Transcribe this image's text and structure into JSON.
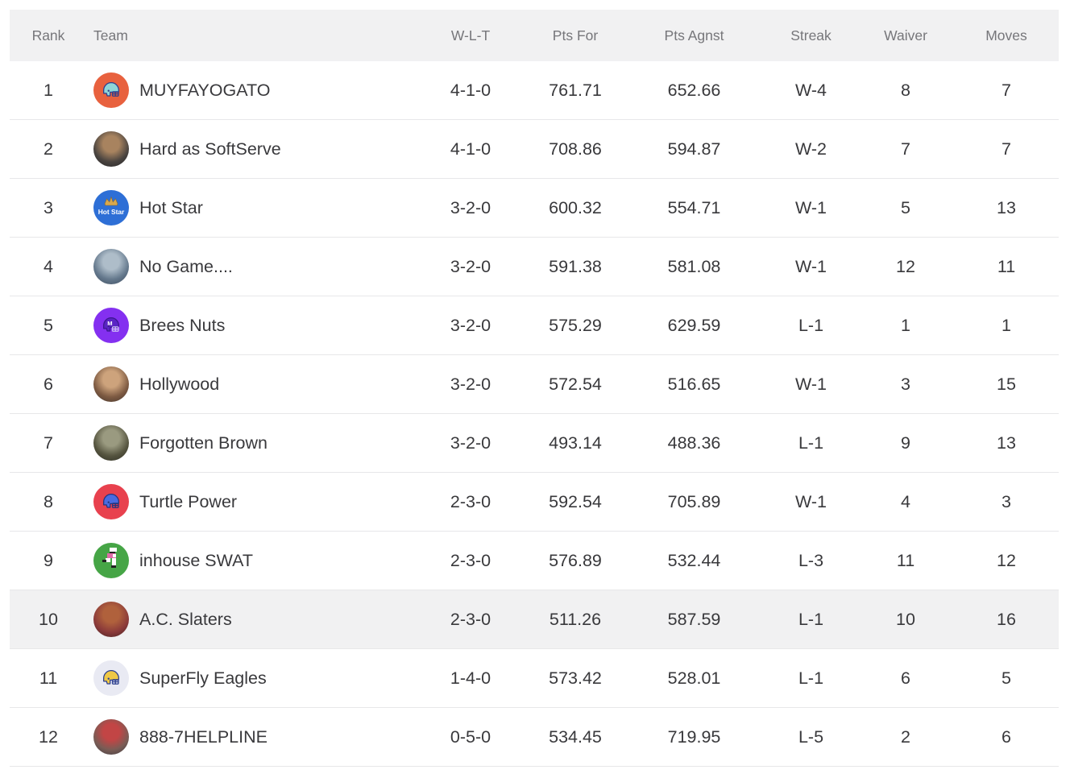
{
  "table": {
    "columns": [
      {
        "key": "rank",
        "label": "Rank"
      },
      {
        "key": "team",
        "label": "Team"
      },
      {
        "key": "wlt",
        "label": "W-L-T"
      },
      {
        "key": "pts_for",
        "label": "Pts For"
      },
      {
        "key": "pts_agnst",
        "label": "Pts Agnst"
      },
      {
        "key": "streak",
        "label": "Streak"
      },
      {
        "key": "waiver",
        "label": "Waiver"
      },
      {
        "key": "moves",
        "label": "Moves"
      }
    ],
    "highlighted_rank": "10",
    "rows": [
      {
        "rank": "1",
        "team": "MUYFAYOGATO",
        "wlt": "4-1-0",
        "pts_for": "761.71",
        "pts_agnst": "652.66",
        "streak": "W-4",
        "waiver": "8",
        "moves": "7",
        "avatar": {
          "kind": "helmet",
          "icon": "football-helmet-icon",
          "bg": "#E8613E",
          "shell": "#8ED5D8",
          "stroke": "#2C3F8F"
        }
      },
      {
        "rank": "2",
        "team": "Hard as SoftServe",
        "wlt": "4-1-0",
        "pts_for": "708.86",
        "pts_agnst": "594.87",
        "streak": "W-2",
        "waiver": "7",
        "moves": "7",
        "avatar": {
          "kind": "photo",
          "icon": "photo-avatar",
          "colors": [
            "#a8835f",
            "#4a4440",
            "#232325"
          ]
        }
      },
      {
        "rank": "3",
        "team": "Hot Star",
        "wlt": "3-2-0",
        "pts_for": "600.32",
        "pts_agnst": "554.71",
        "streak": "W-1",
        "waiver": "5",
        "moves": "13",
        "avatar": {
          "kind": "badge",
          "icon": "hot-star-badge-icon",
          "bg": "#2E6FD6",
          "crown": "#D9A84E",
          "text": "Hot Star",
          "text_color": "#ffffff"
        }
      },
      {
        "rank": "4",
        "team": "No Game....",
        "wlt": "3-2-0",
        "pts_for": "591.38",
        "pts_agnst": "581.08",
        "streak": "W-1",
        "waiver": "12",
        "moves": "11",
        "avatar": {
          "kind": "photo",
          "icon": "photo-avatar",
          "colors": [
            "#aebdc9",
            "#64788c",
            "#3c4a5c"
          ]
        }
      },
      {
        "rank": "5",
        "team": "Brees Nuts",
        "wlt": "3-2-0",
        "pts_for": "575.29",
        "pts_agnst": "629.59",
        "streak": "L-1",
        "waiver": "1",
        "moves": "1",
        "avatar": {
          "kind": "helmet",
          "icon": "football-helmet-icon",
          "bg": "#8430F0",
          "shell": "#5A24C4",
          "stroke": "#3B1690",
          "mask": "#CabdF3",
          "letter": "M"
        }
      },
      {
        "rank": "6",
        "team": "Hollywood",
        "wlt": "3-2-0",
        "pts_for": "572.54",
        "pts_agnst": "516.65",
        "streak": "W-1",
        "waiver": "3",
        "moves": "15",
        "avatar": {
          "kind": "photo",
          "icon": "photo-avatar",
          "colors": [
            "#cda37c",
            "#7d5a42",
            "#40332c"
          ]
        }
      },
      {
        "rank": "7",
        "team": "Forgotten Brown",
        "wlt": "3-2-0",
        "pts_for": "493.14",
        "pts_agnst": "488.36",
        "streak": "L-1",
        "waiver": "9",
        "moves": "13",
        "avatar": {
          "kind": "photo",
          "icon": "photo-avatar",
          "colors": [
            "#9a9a80",
            "#55543f",
            "#2c2c23"
          ]
        }
      },
      {
        "rank": "8",
        "team": "Turtle Power",
        "wlt": "2-3-0",
        "pts_for": "592.54",
        "pts_agnst": "705.89",
        "streak": "W-1",
        "waiver": "4",
        "moves": "3",
        "avatar": {
          "kind": "helmet",
          "icon": "football-helmet-icon",
          "bg": "#E8414E",
          "shell": "#4A6BE0",
          "stroke": "#23357F"
        }
      },
      {
        "rank": "9",
        "team": "inhouse SWAT",
        "wlt": "2-3-0",
        "pts_for": "576.89",
        "pts_agnst": "532.44",
        "streak": "L-3",
        "waiver": "11",
        "moves": "12",
        "avatar": {
          "kind": "pixel",
          "icon": "pixel-player-icon",
          "bg": "#46A546",
          "c1": "#ffffff",
          "c2": "#E06AA8",
          "c3": "#222222"
        }
      },
      {
        "rank": "10",
        "team": "A.C. Slaters",
        "wlt": "2-3-0",
        "pts_for": "511.26",
        "pts_agnst": "587.59",
        "streak": "L-1",
        "waiver": "10",
        "moves": "16",
        "avatar": {
          "kind": "photo",
          "icon": "photo-avatar",
          "colors": [
            "#b0613c",
            "#8b3a3a",
            "#402020"
          ]
        }
      },
      {
        "rank": "11",
        "team": "SuperFly Eagles",
        "wlt": "1-4-0",
        "pts_for": "573.42",
        "pts_agnst": "528.01",
        "streak": "L-1",
        "waiver": "6",
        "moves": "5",
        "avatar": {
          "kind": "helmet",
          "icon": "football-helmet-icon",
          "bg": "#E9EAF3",
          "shell": "#EFC846",
          "stroke": "#2C3F8F"
        }
      },
      {
        "rank": "12",
        "team": "888-7HELPLINE",
        "wlt": "0-5-0",
        "pts_for": "534.45",
        "pts_agnst": "719.95",
        "streak": "L-5",
        "waiver": "2",
        "moves": "6",
        "avatar": {
          "kind": "photo",
          "icon": "photo-avatar",
          "colors": [
            "#c24545",
            "#7a5c55",
            "#393840"
          ]
        }
      }
    ]
  },
  "colors": {
    "header_bg": "#f1f1f2",
    "header_text": "#76767a",
    "body_text": "#39393c",
    "row_highlight_bg": "#f1f1f2",
    "divider": "#e7e7e9"
  }
}
